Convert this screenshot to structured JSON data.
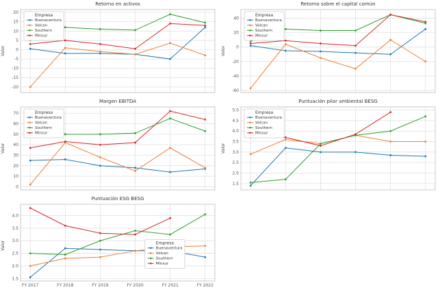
{
  "figure": {
    "background": "#ffffff"
  },
  "companies": [
    "Buenaventura",
    "Volcan",
    "Southern",
    "Minsur"
  ],
  "colors": {
    "buenaventura": "#1f77b4",
    "volcan": "#e8813a",
    "southern": "#2ca02c",
    "minsur": "#d62728"
  },
  "chart_data": [
    {
      "type": "line",
      "title": "Retorno en activos",
      "ylabel": "Valor",
      "categories": [
        "FY 2017",
        "FY 2018",
        "FY 2019",
        "FY 2020",
        "FY 2021",
        "FY 2022"
      ],
      "ylim": [
        -23,
        21.5
      ],
      "yticks": [
        -20,
        -15,
        -10,
        -5,
        0,
        5,
        10,
        15,
        20
      ],
      "tick_decimals": 0,
      "show_x_labels": false,
      "grid": true,
      "legend": {
        "title": "Empresa",
        "position": "top-left"
      },
      "series": [
        {
          "name": "Buenaventura",
          "color": "#1f77b4",
          "values": [
            0.5,
            -2,
            -2,
            -2.5,
            -5,
            12
          ]
        },
        {
          "name": "Volcan",
          "color": "#e8813a",
          "values": [
            -20,
            1,
            -1,
            -2.5,
            3.5,
            -3
          ]
        },
        {
          "name": "Southern",
          "color": "#2ca02c",
          "values": [
            5,
            12,
            11,
            10.5,
            19,
            14.5
          ]
        },
        {
          "name": "Minsur",
          "color": "#d62728",
          "values": [
            3,
            5,
            3,
            0.5,
            14,
            13
          ]
        }
      ]
    },
    {
      "type": "line",
      "title": "Retorno sobre el capital común",
      "ylabel": "Valor",
      "categories": [
        "FY 2017",
        "FY 2018",
        "FY 2019",
        "FY 2020",
        "FY 2021",
        "FY 2022"
      ],
      "ylim": [
        -63,
        52
      ],
      "yticks": [
        -60,
        -40,
        -20,
        0,
        20,
        40
      ],
      "tick_decimals": 0,
      "show_x_labels": false,
      "grid": true,
      "legend": {
        "title": "Empresa",
        "position": "top-left"
      },
      "series": [
        {
          "name": "Buenaventura",
          "color": "#1f77b4",
          "values": [
            2,
            -5,
            -6,
            -8,
            -10,
            25
          ]
        },
        {
          "name": "Volcan",
          "color": "#e8813a",
          "values": [
            -57,
            4,
            -15,
            -30,
            10,
            -20
          ]
        },
        {
          "name": "Southern",
          "color": "#2ca02c",
          "values": [
            8,
            25,
            23,
            23,
            45,
            33
          ]
        },
        {
          "name": "Minsur",
          "color": "#d62728",
          "values": [
            5,
            9,
            5,
            2,
            45,
            35
          ]
        }
      ]
    },
    {
      "type": "line",
      "title": "Margen EBITDA",
      "ylabel": "Valor",
      "categories": [
        "FY 2017",
        "FY 2018",
        "FY 2019",
        "FY 2020",
        "FY 2021",
        "FY 2022"
      ],
      "ylim": [
        -3,
        76
      ],
      "yticks": [
        0,
        10,
        20,
        30,
        40,
        50,
        60,
        70
      ],
      "tick_decimals": 0,
      "show_x_labels": false,
      "grid": true,
      "legend": {
        "title": "Empresa",
        "position": "top-left"
      },
      "series": [
        {
          "name": "Buenaventura",
          "color": "#1f77b4",
          "values": [
            25,
            26,
            20,
            18,
            14,
            17
          ]
        },
        {
          "name": "Volcan",
          "color": "#e8813a",
          "values": [
            2,
            42,
            28,
            15,
            37,
            18
          ]
        },
        {
          "name": "Southern",
          "color": "#2ca02c",
          "values": [
            50,
            50,
            50,
            51,
            65,
            53
          ]
        },
        {
          "name": "Minsur",
          "color": "#d62728",
          "values": [
            37,
            43,
            40,
            42,
            72,
            64
          ]
        }
      ]
    },
    {
      "type": "line",
      "title": "Puntuación pilar ambiental BESG",
      "ylabel": "Valor",
      "categories": [
        "FY 2017",
        "FY 2018",
        "FY 2019",
        "FY 2020",
        "FY 2021",
        "FY 2022"
      ],
      "ylim": [
        1.2,
        5.15
      ],
      "yticks": [
        1.5,
        2.0,
        2.5,
        3.0,
        3.5,
        4.0,
        4.5,
        5.0
      ],
      "tick_decimals": 1,
      "show_x_labels": false,
      "grid": true,
      "legend": {
        "title": "Empresa",
        "position": "top-left"
      },
      "series": [
        {
          "name": "Buenaventura",
          "color": "#1f77b4",
          "values": [
            1.4,
            3.2,
            3.0,
            3.0,
            2.85,
            2.8
          ]
        },
        {
          "name": "Volcan",
          "color": "#e8813a",
          "values": [
            2.9,
            3.6,
            3.4,
            3.8,
            3.5,
            3.5
          ]
        },
        {
          "name": "Southern",
          "color": "#2ca02c",
          "values": [
            1.55,
            1.7,
            3.4,
            3.8,
            4.0,
            4.7
          ]
        },
        {
          "name": "Minsur",
          "color": "#d62728",
          "values": [
            3.7,
            3.7,
            3.3,
            3.85,
            4.9,
            null
          ]
        }
      ]
    },
    {
      "type": "line",
      "title": "Puntuación ESG BESG",
      "ylabel": "Valor",
      "categories": [
        "FY 2017",
        "FY 2018",
        "FY 2019",
        "FY 2020",
        "FY 2021",
        "FY 2022"
      ],
      "ylim": [
        1.4,
        4.45
      ],
      "yticks": [
        1.5,
        2.0,
        2.5,
        3.0,
        3.5,
        4.0
      ],
      "tick_decimals": 1,
      "show_x_labels": true,
      "grid": true,
      "legend": {
        "title": "Empresa",
        "position": "right"
      },
      "series": [
        {
          "name": "Buenaventura",
          "color": "#1f77b4",
          "values": [
            1.55,
            2.7,
            2.65,
            2.6,
            2.6,
            2.35
          ]
        },
        {
          "name": "Volcan",
          "color": "#e8813a",
          "values": [
            2.0,
            2.3,
            2.35,
            2.6,
            2.75,
            2.8
          ]
        },
        {
          "name": "Southern",
          "color": "#2ca02c",
          "values": [
            2.5,
            2.45,
            3.0,
            3.4,
            3.25,
            4.05
          ]
        },
        {
          "name": "Minsur",
          "color": "#d62728",
          "values": [
            4.3,
            3.6,
            3.3,
            3.25,
            3.9,
            null
          ]
        }
      ]
    }
  ]
}
